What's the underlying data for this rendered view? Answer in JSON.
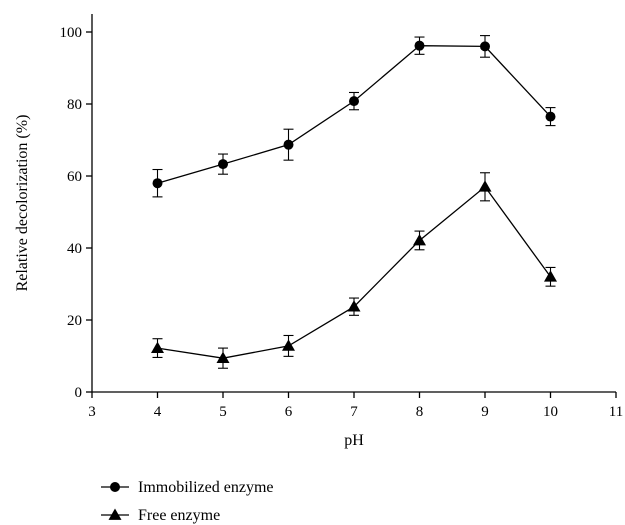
{
  "chart_data": {
    "type": "line",
    "xlabel": "pH",
    "ylabel": "Relative decolorization (%)",
    "xlim": [
      3,
      11
    ],
    "ylim": [
      0,
      105
    ],
    "xticks": [
      3,
      4,
      5,
      6,
      7,
      8,
      9,
      10,
      11
    ],
    "yticks": [
      0,
      20,
      40,
      60,
      80,
      100
    ],
    "grid": false,
    "legend_position": "bottom-left, below plot",
    "series": [
      {
        "name": "Immobilized enzyme",
        "marker": "circle",
        "color": "#000000",
        "x": [
          4,
          5,
          6,
          7,
          8,
          9,
          10
        ],
        "y": [
          58,
          63.3,
          68.7,
          80.8,
          96.2,
          96.0,
          76.5
        ],
        "error": [
          3.8,
          2.8,
          4.3,
          2.4,
          2.4,
          3.0,
          2.5
        ]
      },
      {
        "name": "Free enzyme",
        "marker": "triangle",
        "color": "#000000",
        "x": [
          4,
          5,
          6,
          7,
          8,
          9,
          10
        ],
        "y": [
          12.2,
          9.4,
          12.8,
          23.7,
          42.1,
          57.0,
          32.0
        ],
        "error": [
          2.6,
          2.8,
          2.9,
          2.4,
          2.6,
          3.9,
          2.6
        ]
      }
    ]
  }
}
